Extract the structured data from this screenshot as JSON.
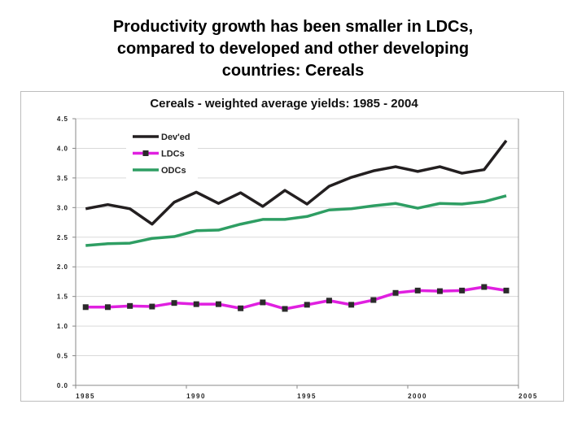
{
  "slide": {
    "title_lines": [
      "Productivity growth has been smaller in LDCs,",
      "compared to developed and other developing",
      "countries: Cereals"
    ]
  },
  "chart_data": {
    "type": "line",
    "title": "Cereals - weighted average yields: 1985 - 2004",
    "xlabel": "",
    "ylabel": "",
    "xlim": [
      1985,
      2005
    ],
    "ylim": [
      0,
      4.5
    ],
    "x_ticks": [
      "1985",
      "1990",
      "1995",
      "2000",
      "2005"
    ],
    "y_ticks": [
      "0.0",
      "0.5",
      "1.0",
      "1.5",
      "2.0",
      "2.5",
      "3.0",
      "3.5",
      "4.0",
      "4.5"
    ],
    "grid": true,
    "legend": "top-left",
    "x": [
      1985,
      1986,
      1987,
      1988,
      1989,
      1990,
      1991,
      1992,
      1993,
      1994,
      1995,
      1996,
      1997,
      1998,
      1999,
      2000,
      2001,
      2002,
      2003,
      2004
    ],
    "series": [
      {
        "name": "Dev'ed",
        "color": "#231f20",
        "marker": "none",
        "values": [
          2.98,
          3.05,
          2.98,
          2.72,
          3.09,
          3.26,
          3.07,
          3.25,
          3.02,
          3.29,
          3.06,
          3.36,
          3.51,
          3.62,
          3.69,
          3.61,
          3.69,
          3.58,
          3.64,
          4.13
        ]
      },
      {
        "name": "LDCs",
        "color": "#e020e0",
        "marker": "square",
        "marker_color": "#2b2b2b",
        "values": [
          1.32,
          1.32,
          1.34,
          1.33,
          1.39,
          1.37,
          1.37,
          1.3,
          1.4,
          1.29,
          1.36,
          1.43,
          1.36,
          1.44,
          1.56,
          1.6,
          1.59,
          1.6,
          1.66,
          1.6
        ]
      },
      {
        "name": "ODCs",
        "color": "#2e9e63",
        "marker": "none",
        "values": [
          2.36,
          2.39,
          2.4,
          2.48,
          2.51,
          2.61,
          2.62,
          2.72,
          2.8,
          2.8,
          2.85,
          2.96,
          2.98,
          3.03,
          3.07,
          2.99,
          3.07,
          3.06,
          3.1,
          3.2
        ]
      }
    ]
  }
}
